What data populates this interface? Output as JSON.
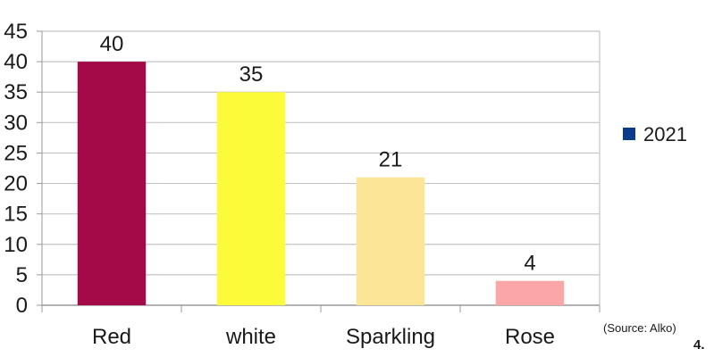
{
  "chart_data": {
    "type": "bar",
    "categories": [
      "Red",
      "white",
      "Sparkling",
      "Rose"
    ],
    "series": [
      {
        "name": "2021",
        "values": [
          40,
          35,
          21,
          4
        ]
      }
    ],
    "data_labels": [
      "40",
      "35",
      "21",
      "4"
    ],
    "bar_colors": [
      "#a50a48",
      "#fbfb3a",
      "#fde597",
      "#fca7a7"
    ],
    "legend_color": "#0a3c8c",
    "ylim": [
      0,
      45
    ],
    "yticks": [
      0,
      5,
      10,
      15,
      20,
      25,
      30,
      35,
      40,
      45
    ],
    "title": "",
    "xlabel": "",
    "ylabel": "",
    "grid": true,
    "legend_position": "right"
  },
  "source_note": "(Source: Alko)",
  "footnote": "4."
}
